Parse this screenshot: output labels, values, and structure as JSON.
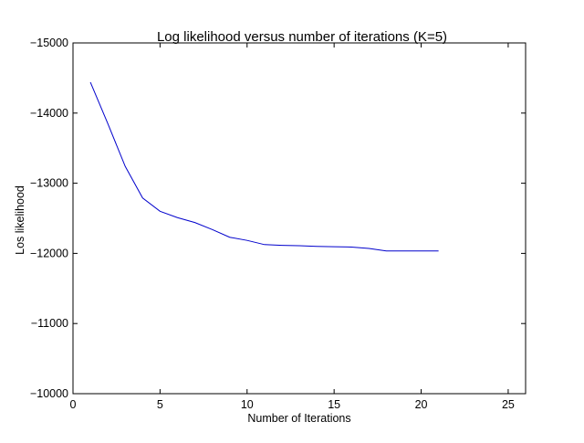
{
  "chart_data": {
    "type": "line",
    "title": "Log likelihood versus number of iterations (K=5)",
    "xlabel": "Number of Iterations",
    "ylabel": "Los likelihood",
    "xlim": [
      0,
      26
    ],
    "ylim": [
      -10000,
      -15000
    ],
    "y_axis_reversed": true,
    "xticks": [
      0,
      5,
      10,
      15,
      20,
      25
    ],
    "xtick_labels": [
      "0",
      "5",
      "10",
      "15",
      "20",
      "25"
    ],
    "yticks": [
      -15000,
      -14000,
      -13000,
      -12000,
      -11000,
      -10000
    ],
    "ytick_labels": [
      "−15000",
      "−14000",
      "−13000",
      "−12000",
      "−11000",
      "−10000"
    ],
    "grid": false,
    "legend": "none",
    "series": [
      {
        "color": "#0000cc",
        "x": [
          1,
          2,
          3,
          4,
          5,
          6,
          7,
          8,
          9,
          10,
          11,
          12,
          13,
          14,
          15,
          16,
          17,
          18,
          19,
          20,
          21
        ],
        "y": [
          -14440,
          -13850,
          -13240,
          -12790,
          -12600,
          -12510,
          -12440,
          -12340,
          -12230,
          -12185,
          -12125,
          -12115,
          -12110,
          -12100,
          -12095,
          -12090,
          -12070,
          -12035,
          -12035,
          -12035,
          -12035
        ]
      }
    ]
  }
}
